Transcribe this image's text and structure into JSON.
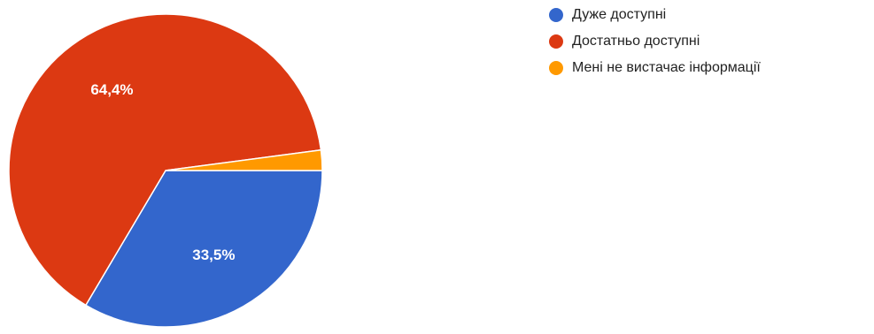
{
  "chart_data": {
    "type": "pie",
    "title": "",
    "legend_position": "right",
    "slices": [
      {
        "name": "Дуже доступні",
        "value": 33.5,
        "label": "33,5%",
        "color": "#3366cc"
      },
      {
        "name": "Достатньо доступні",
        "value": 64.4,
        "label": "64,4%",
        "color": "#dc3912"
      },
      {
        "name": "Мені не вистачає інформації",
        "value": 2.1,
        "label": "",
        "color": "#ff9900"
      }
    ]
  }
}
